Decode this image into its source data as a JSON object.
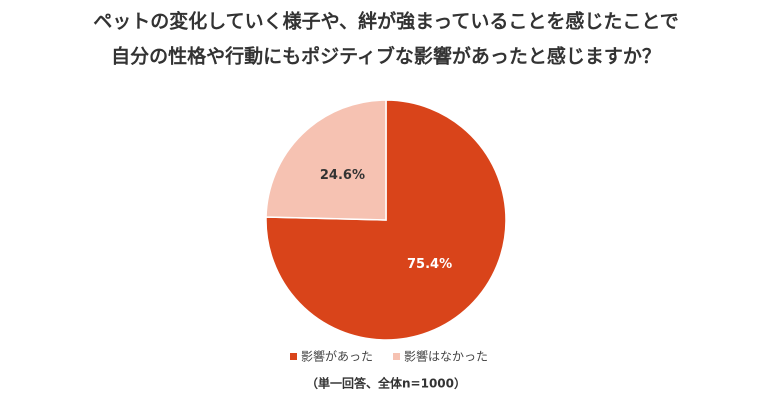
{
  "chart_data": {
    "type": "pie",
    "title": [
      "ペットの変化していく様子や、絆が強まっていることを感じたことで",
      "自分の性格や行動にもポジティブな影響があったと感じますか？"
    ],
    "categories": [
      "影響があった",
      "影響はなかった"
    ],
    "values": [
      75.4,
      24.6
    ],
    "value_labels": [
      "75.4%",
      "24.6%"
    ],
    "colors": [
      "#d9441a",
      "#f6c2b2"
    ],
    "note": "（単一回答、全体n=1000）"
  }
}
